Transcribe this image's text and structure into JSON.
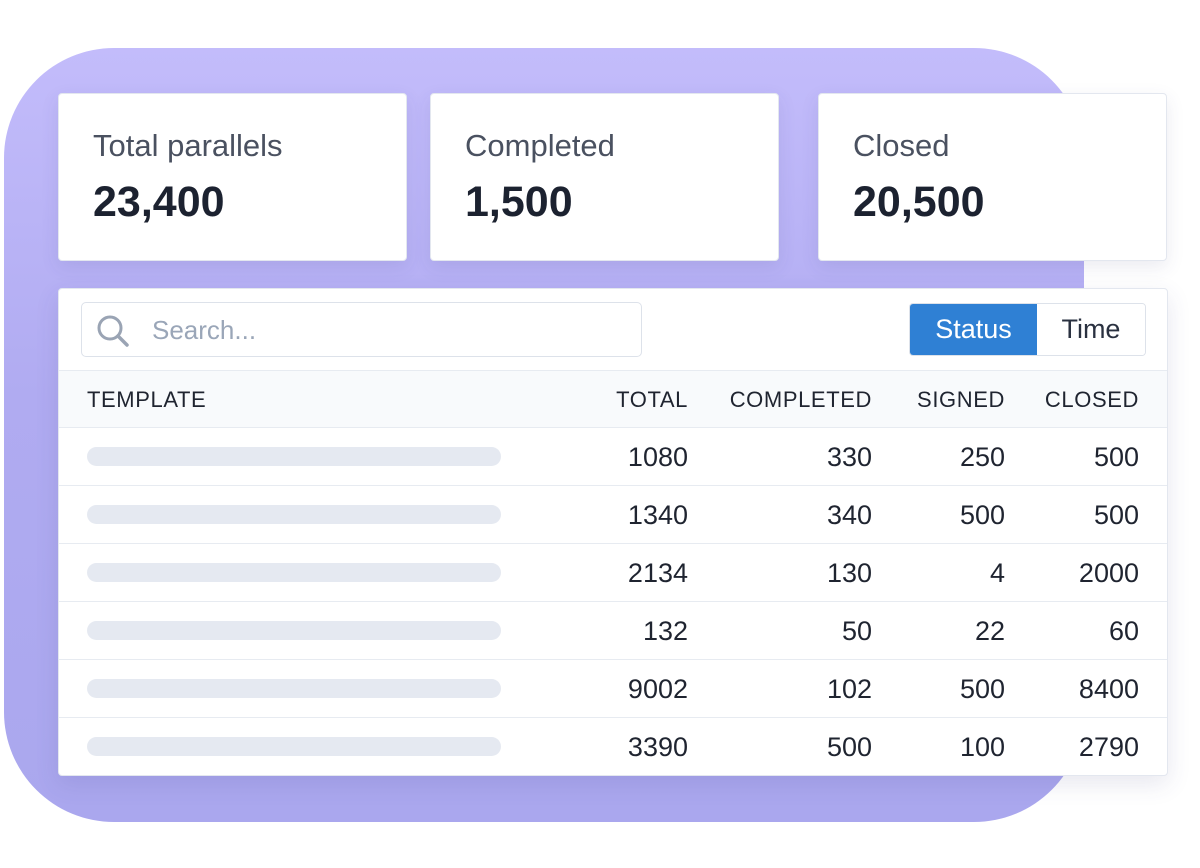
{
  "stats": [
    {
      "label": "Total parallels",
      "value": "23,400"
    },
    {
      "label": "Completed",
      "value": "1,500"
    },
    {
      "label": "Closed",
      "value": "20,500"
    }
  ],
  "search": {
    "placeholder": "Search...",
    "icon": "search-icon"
  },
  "toggle": {
    "options": [
      "Status",
      "Time"
    ],
    "selected": "Status",
    "active_color": "#2f80d4"
  },
  "table": {
    "headers": [
      "TEMPLATE",
      "TOTAL",
      "COMPLETED",
      "SIGNED",
      "CLOSED"
    ],
    "rows": [
      {
        "total": "1080",
        "completed": "330",
        "signed": "250",
        "closed": "500"
      },
      {
        "total": "1340",
        "completed": "340",
        "signed": "500",
        "closed": "500"
      },
      {
        "total": "2134",
        "completed": "130",
        "signed": "4",
        "closed": "2000"
      },
      {
        "total": "132",
        "completed": "50",
        "signed": "22",
        "closed": "60"
      },
      {
        "total": "9002",
        "completed": "102",
        "signed": "500",
        "closed": "8400"
      },
      {
        "total": "3390",
        "completed": "500",
        "signed": "100",
        "closed": "2790"
      }
    ]
  },
  "colors": {
    "backdrop": "#b4aff4",
    "placeholder_bar": "#e5e9f1"
  }
}
